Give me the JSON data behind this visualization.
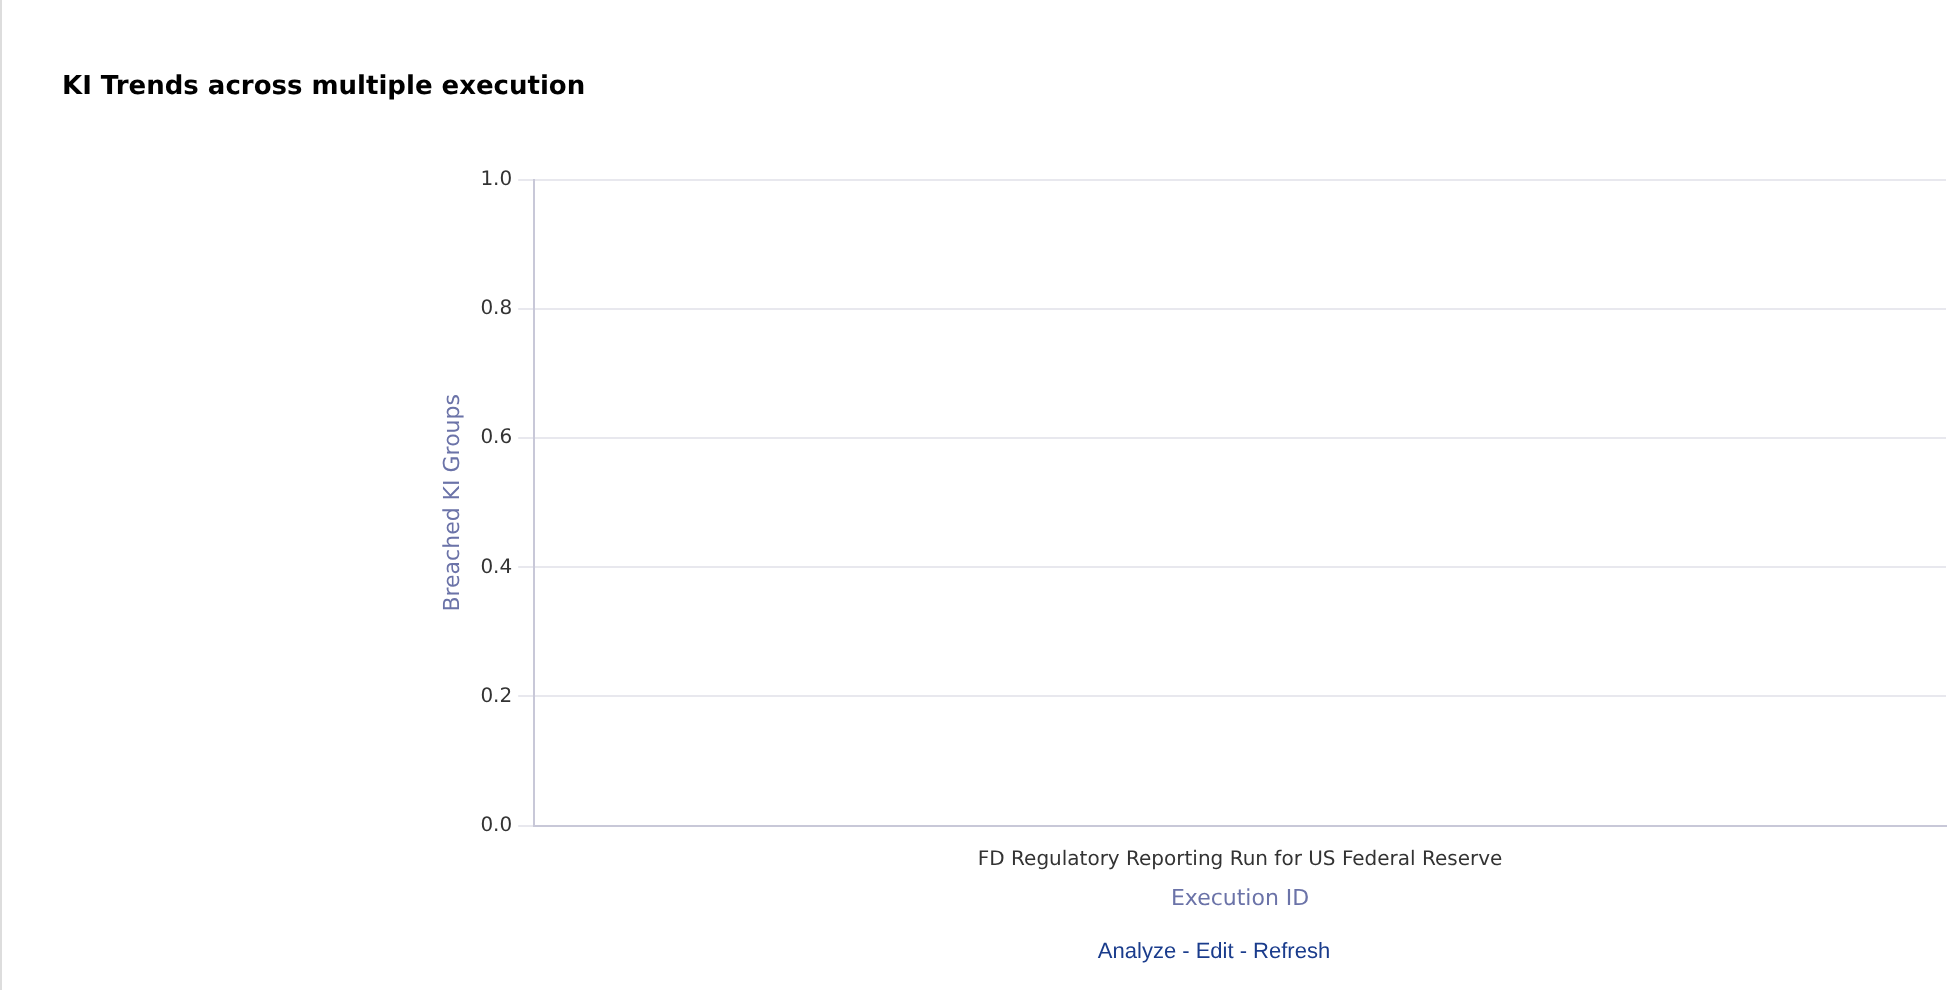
{
  "chart_data": {
    "type": "bar",
    "title": "KI Trends across multiple execution",
    "xlabel": "Execution ID",
    "ylabel": "Breached KI Groups",
    "categories": [
      "FD Regulatory Reporting Run for US Federal Reserve"
    ],
    "values": [
      0
    ],
    "ylim": [
      0,
      1
    ],
    "yticks": [
      {
        "value": 0,
        "label": "0.0"
      },
      {
        "value": 0.2,
        "label": "0.2"
      },
      {
        "value": 0.4,
        "label": "0.4"
      },
      {
        "value": 0.6,
        "label": "0.6"
      },
      {
        "value": 0.8,
        "label": "0.8"
      },
      {
        "value": 1,
        "label": "1.0"
      }
    ],
    "grid": "y",
    "legend": false,
    "annotations": [
      "Analyze - Edit - Refresh"
    ]
  }
}
